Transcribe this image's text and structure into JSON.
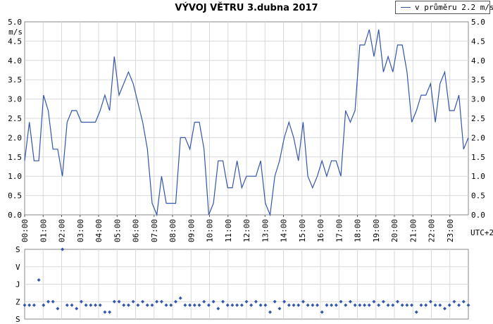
{
  "chart_data": [
    {
      "type": "line",
      "title": "VÝVOJ VĚTRU  3.dubna 2017",
      "ylabel": "m/s",
      "xlabel": "UTC+2",
      "ylim": [
        0,
        5.0
      ],
      "yticks": [
        "0.0",
        "0.5",
        "1.0",
        "1.5",
        "2.0",
        "2.5",
        "3.0",
        "3.5",
        "4.0",
        "4.5",
        "5.0"
      ],
      "xticks": [
        "00:00",
        "01:00",
        "02:00",
        "03:00",
        "04:00",
        "05:00",
        "06:00",
        "07:00",
        "08:00",
        "09:00",
        "10:00",
        "11:00",
        "12:00",
        "13:00",
        "14:00",
        "15:00",
        "16:00",
        "17:00",
        "18:00",
        "19:00",
        "20:00",
        "21:00",
        "22:00",
        "23:00"
      ],
      "grid": true,
      "legend_position": "top-right",
      "series": [
        {
          "name": "v průměru 2.2 m/s",
          "color": "#3355aa",
          "values": [
            1.4,
            2.4,
            1.4,
            1.4,
            3.1,
            2.7,
            1.7,
            1.7,
            1.0,
            2.4,
            2.7,
            2.7,
            2.4,
            2.4,
            2.4,
            2.4,
            2.7,
            3.1,
            2.7,
            4.1,
            3.1,
            3.4,
            3.7,
            3.4,
            2.9,
            2.4,
            1.7,
            0.3,
            0.0,
            1.0,
            0.3,
            0.3,
            0.3,
            2.0,
            2.0,
            1.7,
            2.4,
            2.4,
            1.7,
            0.0,
            0.3,
            1.4,
            1.4,
            0.7,
            0.7,
            1.4,
            0.7,
            1.0,
            1.0,
            1.0,
            1.4,
            0.3,
            0.0,
            1.0,
            1.4,
            2.0,
            2.4,
            2.0,
            1.4,
            2.4,
            1.0,
            0.7,
            1.0,
            1.4,
            1.0,
            1.4,
            1.4,
            1.0,
            2.7,
            2.4,
            2.7,
            4.4,
            4.4,
            4.8,
            4.1,
            4.8,
            3.7,
            4.1,
            3.7,
            4.4,
            4.4,
            3.7,
            2.4,
            2.7,
            3.1,
            3.1,
            3.4,
            2.4,
            3.4,
            3.7,
            2.7,
            2.7,
            3.1,
            1.7,
            2.0
          ]
        }
      ]
    },
    {
      "type": "scatter",
      "ylabels": [
        "S",
        "V",
        "J",
        "Z",
        "S"
      ],
      "ylim": [
        0,
        360
      ],
      "series": [
        {
          "name": "",
          "color": "#3355aa",
          "values": [
            72,
            72,
            72,
            202,
            72,
            90,
            90,
            54,
            360,
            72,
            72,
            54,
            90,
            72,
            72,
            72,
            72,
            36,
            36,
            90,
            90,
            72,
            72,
            90,
            72,
            90,
            72,
            72,
            90,
            90,
            72,
            72,
            90,
            108,
            72,
            72,
            72,
            72,
            90,
            72,
            90,
            54,
            90,
            72,
            72,
            72,
            72,
            90,
            72,
            90,
            72,
            72,
            36,
            90,
            54,
            90,
            72,
            72,
            72,
            90,
            72,
            72,
            72,
            36,
            72,
            72,
            72,
            90,
            72,
            90,
            72,
            72,
            72,
            72,
            90,
            72,
            90,
            72,
            72,
            90,
            72,
            72,
            72,
            36,
            72,
            72,
            90,
            72,
            72,
            54,
            72,
            90,
            72,
            90,
            72
          ]
        }
      ]
    }
  ]
}
